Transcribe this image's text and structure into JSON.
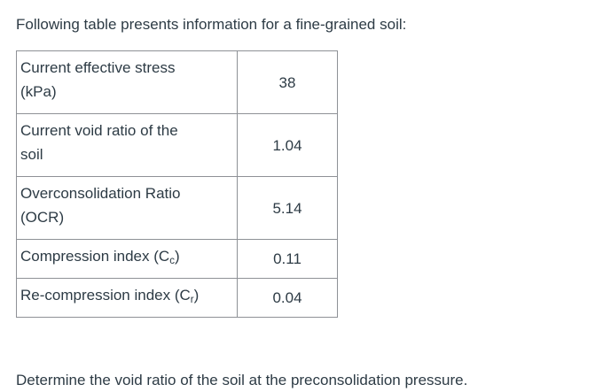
{
  "intro_text": "Following table presents information for a fine-grained soil:",
  "question_text": "Determine the void ratio of the soil at the preconsolidation pressure.",
  "colors": {
    "text": "#2d3b45",
    "table_border": "#8e9196",
    "background": "#ffffff"
  },
  "table": {
    "rows": [
      {
        "lines": [
          "Current effective stress",
          "(kPa)"
        ],
        "sub": "",
        "after": "",
        "value": "38"
      },
      {
        "lines": [
          "Current void ratio of the",
          "soil"
        ],
        "sub": "",
        "after": "",
        "value": "1.04"
      },
      {
        "lines": [
          "Overconsolidation Ratio",
          "(OCR)"
        ],
        "sub": "",
        "after": "",
        "value": "5.14"
      },
      {
        "lines": [
          "Compression index (C"
        ],
        "sub": "c",
        "after": ")",
        "value": "0.11"
      },
      {
        "lines": [
          "Re-compression index (C"
        ],
        "sub": "r",
        "after": ")",
        "value": "0.04"
      }
    ]
  }
}
